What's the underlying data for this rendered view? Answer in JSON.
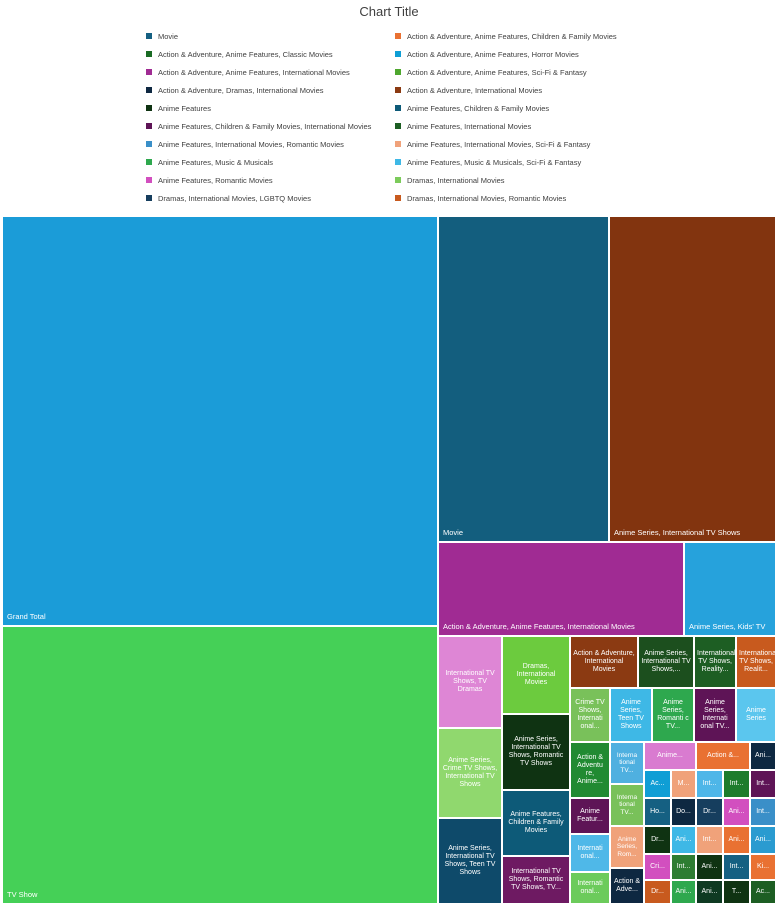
{
  "chart_data": {
    "type": "treemap",
    "title": "Chart Title",
    "legend_position": "top",
    "legend": [
      {
        "label": "Movie",
        "color": "#156082"
      },
      {
        "label": "Action & Adventure, Anime Features, Children & Family Movies",
        "color": "#E97132"
      },
      {
        "label": "Action & Adventure, Anime Features, Classic Movies",
        "color": "#196B24"
      },
      {
        "label": "Action & Adventure, Anime Features, Horror Movies",
        "color": "#0F9ED5"
      },
      {
        "label": "Action & Adventure, Anime Features, International Movies",
        "color": "#A02B93"
      },
      {
        "label": "Action & Adventure, Anime Features, Sci-Fi & Fantasy",
        "color": "#4EA72E"
      },
      {
        "label": "Action & Adventure, Dramas, International Movies",
        "color": "#0E2841"
      },
      {
        "label": "Action & Adventure, International Movies",
        "color": "#8B3A12"
      },
      {
        "label": "Anime Features",
        "color": "#0F3312"
      },
      {
        "label": "Anime Features, Children & Family Movies",
        "color": "#0D5A78"
      },
      {
        "label": "Anime Features, Children & Family Movies, International Movies",
        "color": "#5E1456"
      },
      {
        "label": "Anime Features, International Movies",
        "color": "#1D5E23"
      },
      {
        "label": "Anime Features, International Movies, Romantic Movies",
        "color": "#3A8FC8"
      },
      {
        "label": "Anime Features, International Movies, Sci-Fi & Fantasy",
        "color": "#F0A27A"
      },
      {
        "label": "Anime Features, Music & Musicals",
        "color": "#2EA84E"
      },
      {
        "label": "Anime Features, Music & Musicals, Sci-Fi & Fantasy",
        "color": "#3EB8E6"
      },
      {
        "label": "Anime Features, Romantic Movies",
        "color": "#D24FBF"
      },
      {
        "label": "Dramas, International Movies",
        "color": "#7CCB5B"
      },
      {
        "label": "Dramas, International Movies, LGBTQ Movies",
        "color": "#163E5E"
      },
      {
        "label": "Dramas, International Movies, Romantic Movies",
        "color": "#C85A1E"
      }
    ],
    "tiles": [
      {
        "label": "Grand Total",
        "color": "#1B9CD8"
      },
      {
        "label": "TV Show",
        "color": "#45D057"
      },
      {
        "label": "Movie",
        "color": "#135E7E"
      },
      {
        "label": "Anime Series, International TV Shows",
        "color": "#82340F"
      },
      {
        "label": "Action & Adventure, Anime Features, International Movies",
        "color": "#A02B93"
      },
      {
        "label": "Anime Series, Kids' TV",
        "color": "#26A2DC"
      },
      {
        "label": "International TV Shows, TV Dramas",
        "color": "#DE86D5"
      },
      {
        "label": "Dramas, International Movies",
        "color": "#6CCB3E"
      },
      {
        "label": "Action & Adventure, International Movies",
        "color": "#8B3A12"
      },
      {
        "label": "Anime Series, International TV Shows,...",
        "color": "#1C4F1E"
      },
      {
        "label": "International TV Shows, Reality...",
        "color": "#1D5E23"
      },
      {
        "label": "International TV Shows, Realit...",
        "color": "#C85A1E"
      },
      {
        "label": "Crime TV Shows, Internati onal...",
        "color": "#79C15A"
      },
      {
        "label": "Anime Series, Teen TV Shows",
        "color": "#3EB8E6"
      },
      {
        "label": "Anime Series, Romanti c TV...",
        "color": "#2EA84E"
      },
      {
        "label": "Anime Series, Internati onal TV...",
        "color": "#5E1456"
      },
      {
        "label": "Anime Series",
        "color": "#5BC6EE"
      },
      {
        "label": "Anime Series, Crime TV Shows, International TV Shows",
        "color": "#90D86E"
      },
      {
        "label": "Anime Series, International TV Shows, Romantic TV Shows",
        "color": "#0F3312"
      },
      {
        "label": "Action & Adventu re, Anime...",
        "color": "#218A32"
      },
      {
        "label": "Interna tional TV...",
        "color": "#4FB0E0"
      },
      {
        "label": "Anime...",
        "color": "#D97BD0"
      },
      {
        "label": "Action &...",
        "color": "#E97132"
      },
      {
        "label": "Ani...",
        "color": "#0E2841"
      },
      {
        "label": "Ac...",
        "color": "#0F9ED5"
      },
      {
        "label": "M...",
        "color": "#F0A27A"
      },
      {
        "label": "Int...",
        "color": "#4EB6E8"
      },
      {
        "label": "Int...",
        "color": "#1D7C2C"
      },
      {
        "label": "Int...",
        "color": "#5E1456"
      },
      {
        "label": "Interna tional TV...",
        "color": "#79C15A"
      },
      {
        "label": "Anime Featur...",
        "color": "#5E1456"
      },
      {
        "label": "Ho...",
        "color": "#156082"
      },
      {
        "label": "Do...",
        "color": "#0E2841"
      },
      {
        "label": "Dr...",
        "color": "#163E5E"
      },
      {
        "label": "Ani...",
        "color": "#D24FBF"
      },
      {
        "label": "Int...",
        "color": "#3A8FC8"
      },
      {
        "label": "Anime Features, Children & Family Movies",
        "color": "#0D5A78"
      },
      {
        "label": "Internati onal...",
        "color": "#4FB8E8"
      },
      {
        "label": "Anime Series, Rom...",
        "color": "#F0A27A"
      },
      {
        "label": "Dr...",
        "color": "#0F3312"
      },
      {
        "label": "Ani...",
        "color": "#3EB8E6"
      },
      {
        "label": "Int...",
        "color": "#F0A27A"
      },
      {
        "label": "Ani...",
        "color": "#E97132"
      },
      {
        "label": "Ani...",
        "color": "#2A9BD0"
      },
      {
        "label": "Anime Series, International TV Shows, Teen TV Shows",
        "color": "#0E4A6A"
      },
      {
        "label": "International TV Shows, Romantic TV Shows, TV...",
        "color": "#6E1A62"
      },
      {
        "label": "Internati onal...",
        "color": "#6CCB5B"
      },
      {
        "label": "Action & Adve...",
        "color": "#0E2841"
      },
      {
        "label": "Cri...",
        "color": "#D24FBF"
      },
      {
        "label": "Int...",
        "color": "#2E7D32"
      },
      {
        "label": "Ani...",
        "color": "#0F3312"
      },
      {
        "label": "Int...",
        "color": "#156082"
      },
      {
        "label": "Ki...",
        "color": "#E97132"
      },
      {
        "label": "Dr...",
        "color": "#C85A1E"
      },
      {
        "label": "Ani...",
        "color": "#2EA84E"
      },
      {
        "label": "Ani...",
        "color": "#0E3A22"
      },
      {
        "label": "T...",
        "color": "#0F3312"
      },
      {
        "label": "Ac...",
        "color": "#1D5E23"
      }
    ]
  }
}
